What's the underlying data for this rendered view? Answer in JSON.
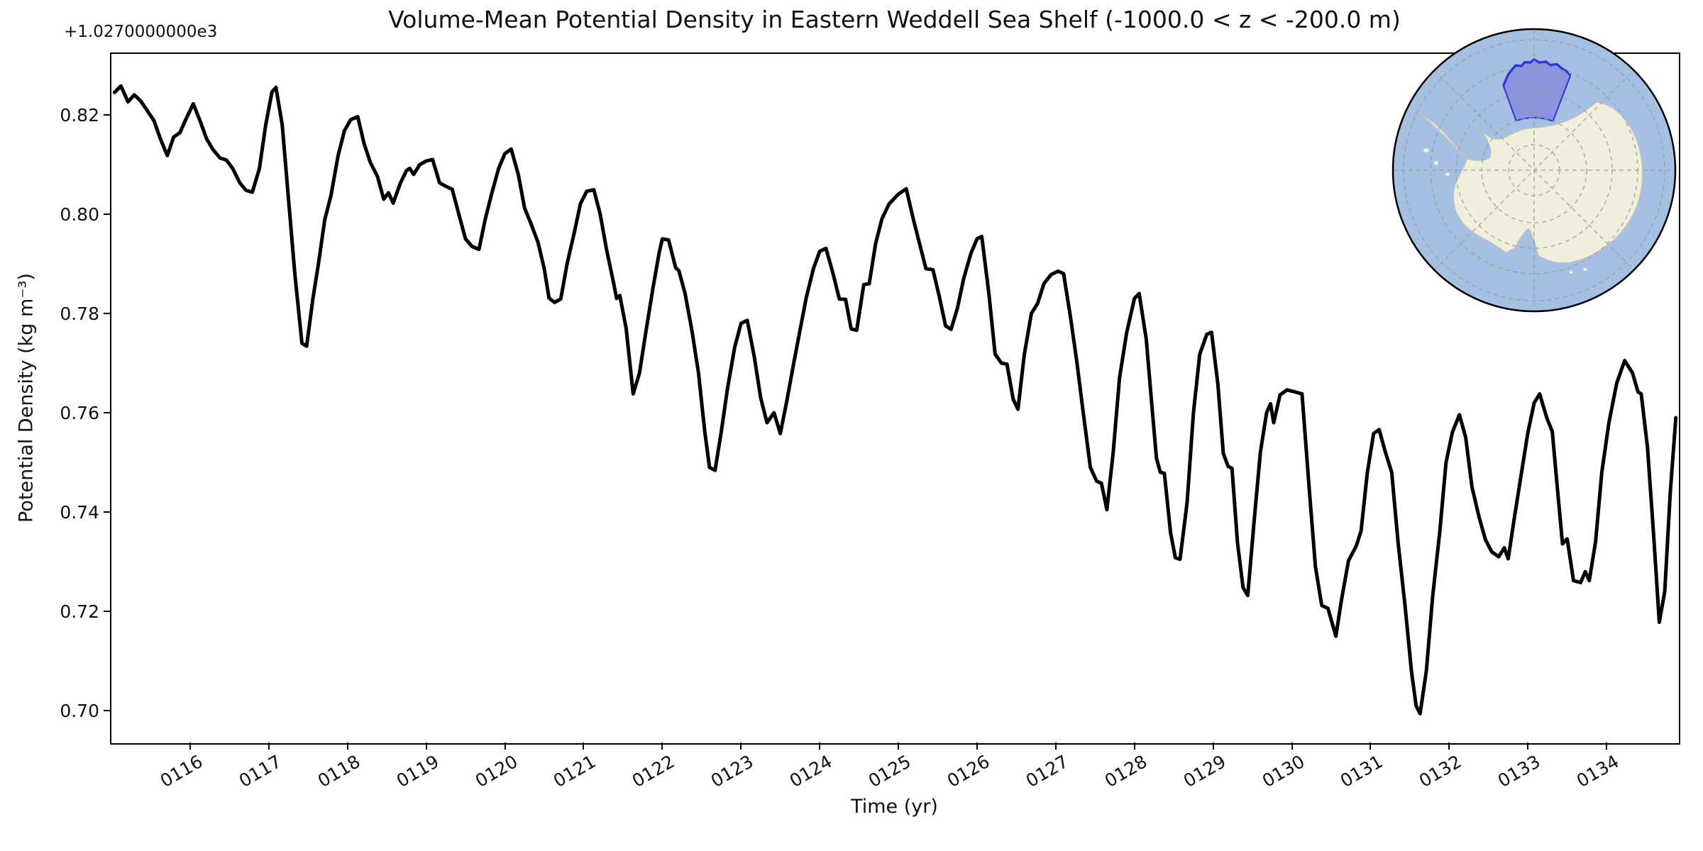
{
  "chart_data": {
    "type": "line",
    "title": "Volume-Mean Potential Density in Eastern Weddell Sea Shelf (-1000.0 < z < -200.0 m)",
    "xlabel": "Time (yr)",
    "ylabel": "Potential Density (kg m⁻³)",
    "y_axis_offset_label": "+1.0270000000e3",
    "y_offset_base": 1027.0,
    "x_tick_labels": [
      "0116",
      "0117",
      "0118",
      "0119",
      "0120",
      "0121",
      "0122",
      "0123",
      "0124",
      "0125",
      "0126",
      "0127",
      "0128",
      "0129",
      "0130",
      "0131",
      "0132",
      "0133",
      "0134"
    ],
    "y_tick_labels": [
      "0.82",
      "0.80",
      "0.78",
      "0.76",
      "0.74",
      "0.72",
      "0.70"
    ],
    "xlim": [
      114.99,
      134.91
    ],
    "ylim": [
      0.6936,
      0.8324
    ],
    "grid": false,
    "legend": null,
    "line_color": "#000000",
    "line_width": 5,
    "x": [
      115.04,
      115.12,
      115.21,
      115.29,
      115.37,
      115.46,
      115.54,
      115.62,
      115.71,
      115.79,
      115.87,
      115.96,
      116.04,
      116.13,
      116.21,
      116.29,
      116.38,
      116.46,
      116.54,
      116.63,
      116.71,
      116.79,
      116.88,
      116.96,
      117.04,
      117.09,
      117.17,
      117.25,
      117.33,
      117.42,
      117.48,
      117.56,
      117.63,
      117.71,
      117.79,
      117.88,
      117.96,
      118.04,
      118.13,
      118.21,
      118.29,
      118.38,
      118.46,
      118.52,
      118.58,
      118.67,
      118.75,
      118.79,
      118.84,
      118.92,
      119.0,
      119.08,
      119.17,
      119.25,
      119.33,
      119.42,
      119.5,
      119.58,
      119.67,
      119.75,
      119.83,
      119.92,
      120.0,
      120.08,
      120.17,
      120.25,
      120.33,
      120.42,
      120.5,
      120.56,
      120.63,
      120.71,
      120.79,
      120.88,
      120.96,
      121.04,
      121.13,
      121.21,
      121.29,
      121.38,
      121.42,
      121.46,
      121.54,
      121.63,
      121.71,
      121.79,
      121.88,
      121.96,
      122.0,
      122.08,
      122.17,
      122.21,
      122.29,
      122.38,
      122.46,
      122.54,
      122.6,
      122.67,
      122.75,
      122.83,
      122.92,
      123.0,
      123.08,
      123.17,
      123.25,
      123.33,
      123.42,
      123.5,
      123.58,
      123.67,
      123.75,
      123.83,
      123.92,
      124.0,
      124.08,
      124.17,
      124.25,
      124.33,
      124.4,
      124.47,
      124.56,
      124.63,
      124.71,
      124.79,
      124.88,
      125.0,
      125.1,
      125.19,
      125.27,
      125.35,
      125.44,
      125.52,
      125.6,
      125.67,
      125.75,
      125.83,
      125.92,
      126.0,
      126.06,
      126.15,
      126.23,
      126.31,
      126.38,
      126.46,
      126.52,
      126.6,
      126.69,
      126.77,
      126.85,
      126.94,
      127.03,
      127.1,
      127.19,
      127.27,
      127.35,
      127.44,
      127.52,
      127.58,
      127.65,
      127.73,
      127.81,
      127.9,
      128.0,
      128.06,
      128.15,
      128.22,
      128.28,
      128.33,
      128.38,
      128.46,
      128.52,
      128.58,
      128.67,
      128.75,
      128.83,
      128.92,
      128.98,
      129.06,
      129.13,
      129.19,
      129.24,
      129.31,
      129.38,
      129.44,
      129.52,
      129.6,
      129.68,
      129.73,
      129.77,
      129.85,
      129.94,
      130.04,
      130.13,
      130.22,
      130.3,
      130.38,
      130.46,
      130.56,
      130.63,
      130.72,
      130.82,
      130.88,
      130.96,
      131.04,
      131.11,
      131.19,
      131.27,
      131.35,
      131.44,
      131.52,
      131.58,
      131.63,
      131.71,
      131.79,
      131.88,
      131.96,
      132.04,
      132.13,
      132.21,
      132.29,
      132.38,
      132.46,
      132.54,
      132.63,
      132.7,
      132.75,
      132.83,
      132.92,
      133.0,
      133.08,
      133.15,
      133.24,
      133.31,
      133.38,
      133.44,
      133.5,
      133.58,
      133.67,
      133.73,
      133.78,
      133.86,
      133.94,
      134.03,
      134.13,
      134.23,
      134.33,
      134.4,
      134.44,
      134.52,
      134.6,
      134.67,
      134.74,
      134.81,
      134.88
    ],
    "values": [
      0.8245,
      0.8258,
      0.8226,
      0.824,
      0.8228,
      0.8207,
      0.8188,
      0.8152,
      0.8118,
      0.8155,
      0.8164,
      0.8196,
      0.8222,
      0.8186,
      0.8151,
      0.813,
      0.8113,
      0.8109,
      0.8092,
      0.8063,
      0.8048,
      0.8044,
      0.8092,
      0.818,
      0.8246,
      0.8255,
      0.818,
      0.803,
      0.788,
      0.774,
      0.7734,
      0.783,
      0.79,
      0.7988,
      0.8038,
      0.8118,
      0.8168,
      0.819,
      0.8196,
      0.8142,
      0.8104,
      0.8076,
      0.803,
      0.8043,
      0.8022,
      0.8062,
      0.8088,
      0.8092,
      0.808,
      0.81,
      0.8107,
      0.811,
      0.8063,
      0.8056,
      0.805,
      0.7996,
      0.795,
      0.7935,
      0.7929,
      0.799,
      0.804,
      0.8092,
      0.8122,
      0.8131,
      0.808,
      0.8012,
      0.7981,
      0.7943,
      0.789,
      0.7831,
      0.7822,
      0.7829,
      0.79,
      0.7962,
      0.8021,
      0.8046,
      0.8049,
      0.8,
      0.793,
      0.7862,
      0.783,
      0.7836,
      0.777,
      0.7638,
      0.768,
      0.7762,
      0.785,
      0.7922,
      0.795,
      0.7948,
      0.7892,
      0.7886,
      0.784,
      0.7762,
      0.768,
      0.7562,
      0.749,
      0.7484,
      0.7562,
      0.765,
      0.7732,
      0.778,
      0.7786,
      0.7712,
      0.763,
      0.758,
      0.76,
      0.7558,
      0.7622,
      0.77,
      0.7766,
      0.7832,
      0.789,
      0.7925,
      0.7931,
      0.788,
      0.7829,
      0.7828,
      0.7769,
      0.7766,
      0.7858,
      0.786,
      0.794,
      0.799,
      0.802,
      0.804,
      0.8051,
      0.799,
      0.794,
      0.789,
      0.7888,
      0.7834,
      0.7775,
      0.7768,
      0.781,
      0.787,
      0.792,
      0.795,
      0.7955,
      0.784,
      0.7718,
      0.77,
      0.7698,
      0.7627,
      0.7607,
      0.7717,
      0.78,
      0.782,
      0.786,
      0.7878,
      0.7885,
      0.788,
      0.779,
      0.77,
      0.76,
      0.749,
      0.7462,
      0.7458,
      0.7405,
      0.752,
      0.767,
      0.776,
      0.783,
      0.784,
      0.7748,
      0.7618,
      0.7508,
      0.748,
      0.7478,
      0.7358,
      0.7308,
      0.7305,
      0.742,
      0.76,
      0.7718,
      0.7758,
      0.7762,
      0.7658,
      0.7518,
      0.7492,
      0.7488,
      0.7338,
      0.7248,
      0.7232,
      0.738,
      0.752,
      0.76,
      0.7618,
      0.758,
      0.7636,
      0.7646,
      0.7642,
      0.7638,
      0.745,
      0.729,
      0.7212,
      0.7206,
      0.715,
      0.7222,
      0.7302,
      0.7332,
      0.7362,
      0.748,
      0.7558,
      0.7566,
      0.752,
      0.748,
      0.734,
      0.721,
      0.708,
      0.701,
      0.6994,
      0.708,
      0.723,
      0.736,
      0.75,
      0.756,
      0.7596,
      0.755,
      0.745,
      0.739,
      0.7345,
      0.732,
      0.731,
      0.7328,
      0.7306,
      0.739,
      0.748,
      0.756,
      0.762,
      0.7638,
      0.759,
      0.7562,
      0.744,
      0.7336,
      0.7346,
      0.7262,
      0.7258,
      0.728,
      0.7262,
      0.734,
      0.748,
      0.758,
      0.766,
      0.7705,
      0.768,
      0.7642,
      0.7638,
      0.753,
      0.735,
      0.7178,
      0.724,
      0.744,
      0.759
    ]
  },
  "inset_map": {
    "region_label": "Eastern Weddell Sea Shelf",
    "projection": "south polar stereographic",
    "ocean_color": "#a6c0e4",
    "land_color": "#f1efdb",
    "region_fill": "#7e82da",
    "region_fill_opacity": "0.7",
    "region_edge": "#3232d8",
    "graticule_color": "#999999",
    "outline_color": "#000000"
  }
}
